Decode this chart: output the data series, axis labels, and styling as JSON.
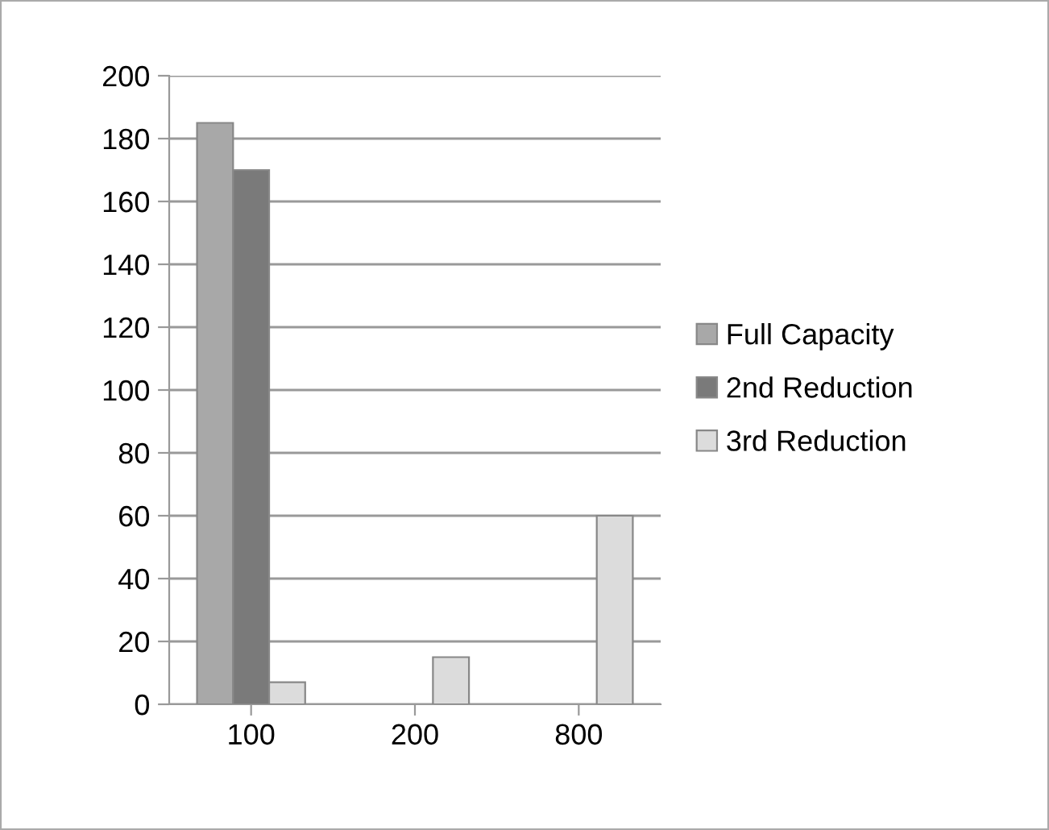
{
  "chart_data": {
    "type": "bar",
    "categories": [
      "100",
      "200",
      "800"
    ],
    "series": [
      {
        "name": "Full Capacity",
        "color": "#a8a8a8",
        "values": [
          185,
          null,
          null
        ]
      },
      {
        "name": "2nd Reduction",
        "color": "#7a7a7a",
        "values": [
          170,
          null,
          null
        ]
      },
      {
        "name": "3rd Reduction",
        "color": "#dcdcdc",
        "values": [
          7,
          15,
          60
        ]
      }
    ],
    "ylim": [
      0,
      200
    ],
    "yticks": [
      0,
      20,
      40,
      60,
      80,
      100,
      120,
      140,
      160,
      180,
      200
    ],
    "grid": "y",
    "legend": "right"
  }
}
